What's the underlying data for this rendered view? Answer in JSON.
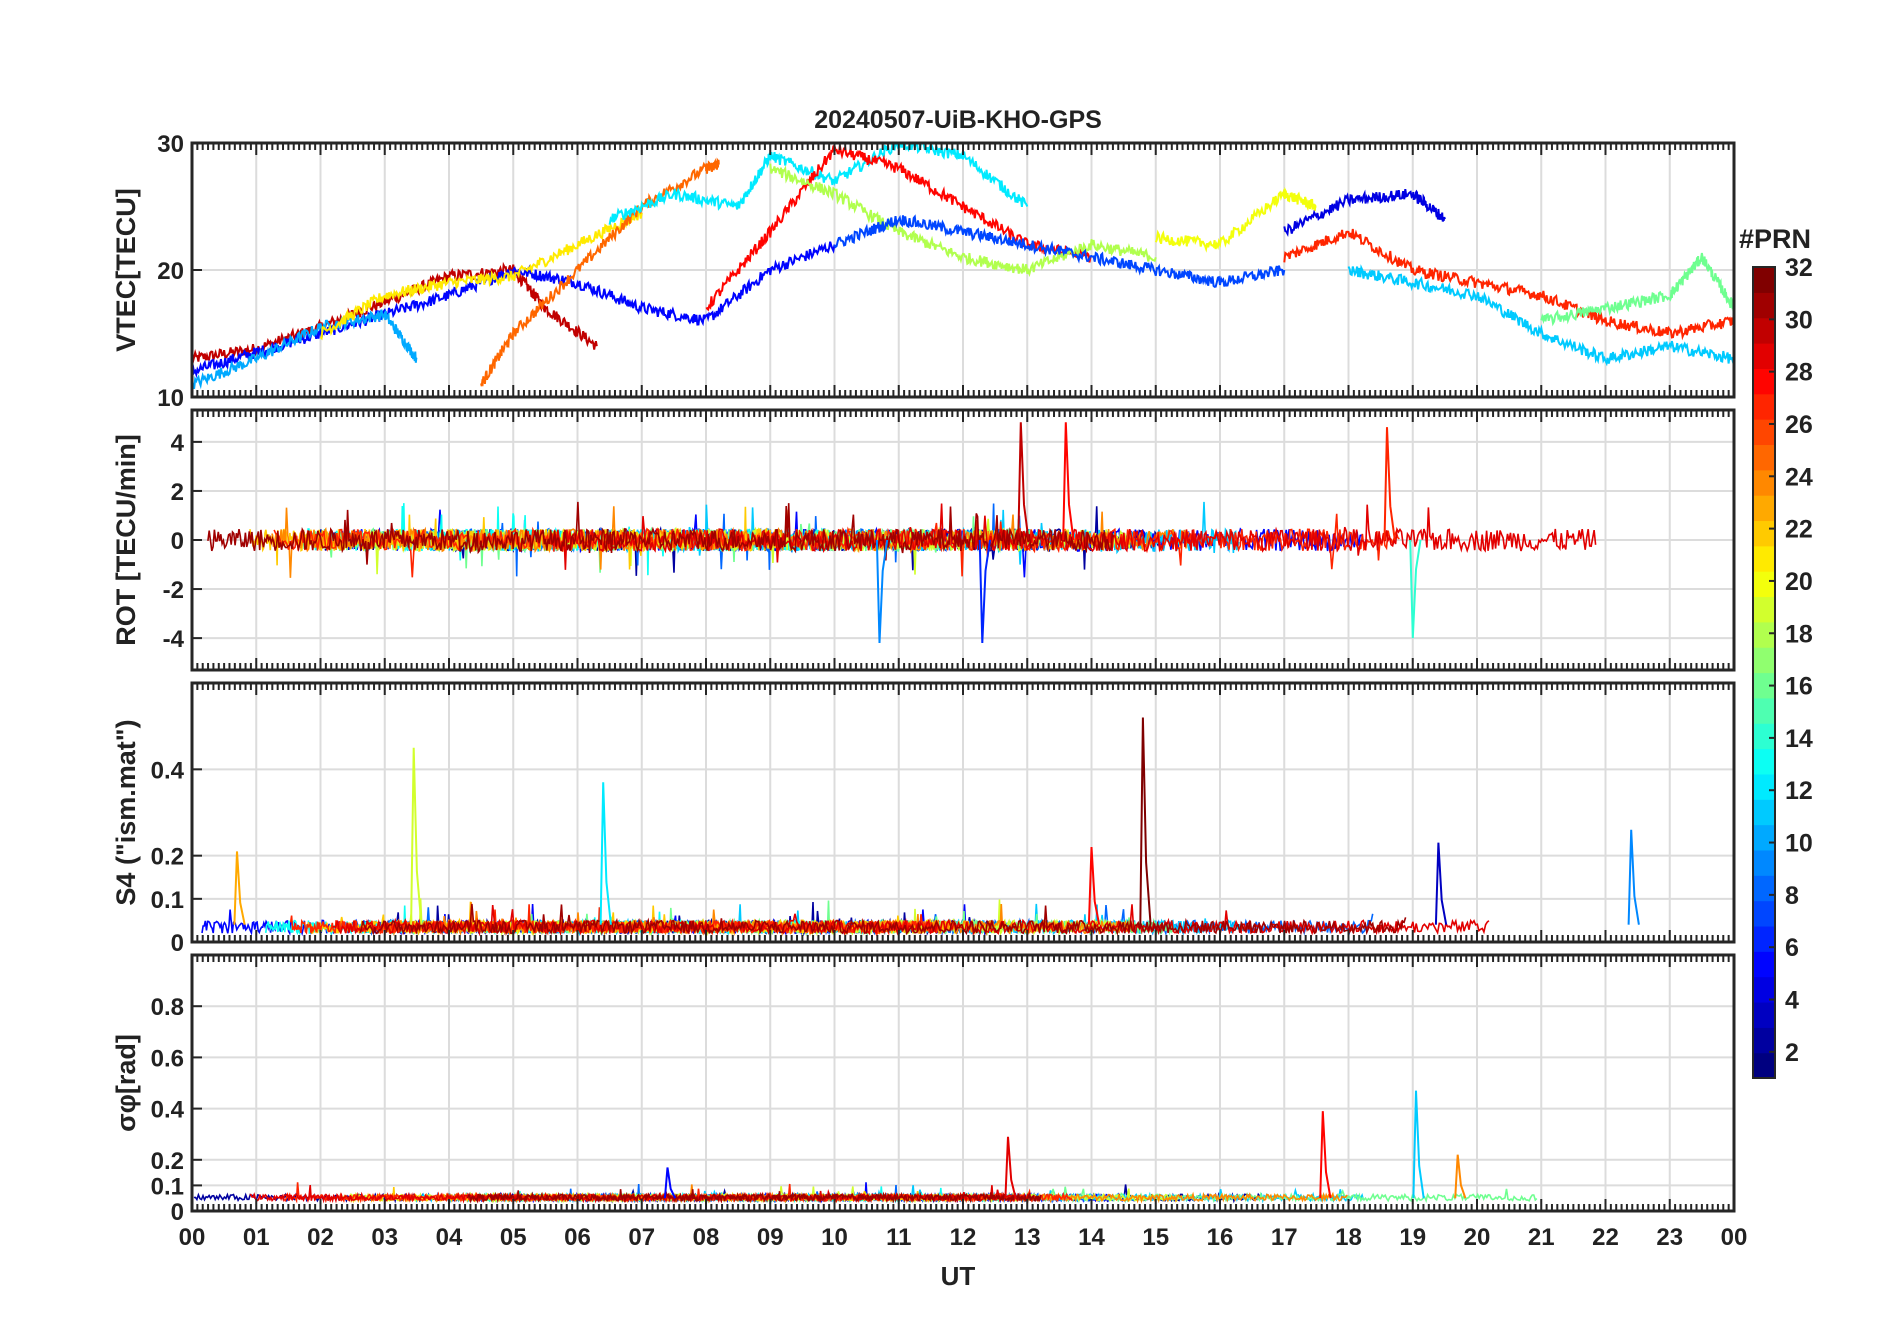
{
  "title": "20240507-UiB-KHO-GPS",
  "xlabel": "UT",
  "x_ticks": [
    "00",
    "01",
    "02",
    "03",
    "04",
    "05",
    "06",
    "07",
    "08",
    "09",
    "10",
    "11",
    "12",
    "13",
    "14",
    "15",
    "16",
    "17",
    "18",
    "19",
    "20",
    "21",
    "22",
    "23",
    "00"
  ],
  "colorbar": {
    "title": "#PRN",
    "range": [
      1,
      32
    ],
    "tick_labels": [
      "2",
      "4",
      "6",
      "8",
      "10",
      "12",
      "14",
      "16",
      "18",
      "20",
      "22",
      "24",
      "26",
      "28",
      "30",
      "32"
    ]
  },
  "chart_data": [
    {
      "type": "line",
      "id": "vtec",
      "ylabel": "VTEC[TECU]",
      "xlim": [
        0,
        24
      ],
      "ylim": [
        10,
        30
      ],
      "yticks": [
        "10",
        "20",
        "30"
      ],
      "grid": true,
      "description_series": "per-satellite VTEC curves, colored by PRN 1-32",
      "series": [
        {
          "prn": 30,
          "name": "PRN30",
          "x": [
            0.0,
            1.0,
            2.0,
            3.0,
            4.0,
            5.0,
            5.5,
            6.3
          ],
          "y": [
            13.0,
            13.8,
            15.5,
            17.5,
            19.5,
            20.0,
            17.0,
            14.0
          ]
        },
        {
          "prn": 5,
          "name": "PRN05",
          "x": [
            0.0,
            1.0,
            2.0,
            3.0,
            4.0,
            5.0,
            6.0,
            7.0,
            8.0,
            9.0,
            10.0
          ],
          "y": [
            12.0,
            13.5,
            15.0,
            16.5,
            18.0,
            20.0,
            19.0,
            17.0,
            16.0,
            20.0,
            22.0
          ]
        },
        {
          "prn": 10,
          "name": "PRN10",
          "x": [
            0.0,
            1.0,
            2.0,
            3.0,
            3.5
          ],
          "y": [
            11.0,
            13.0,
            15.5,
            16.5,
            13.0
          ]
        },
        {
          "prn": 21,
          "name": "PRN21",
          "x": [
            2.0,
            3.0,
            4.0,
            5.0,
            6.0,
            7.0
          ],
          "y": [
            15.0,
            18.0,
            19.0,
            19.5,
            22.0,
            24.5
          ]
        },
        {
          "prn": 25,
          "name": "PRN25",
          "x": [
            4.5,
            5.0,
            6.0,
            7.0,
            8.0,
            8.2
          ],
          "y": [
            11.0,
            15.0,
            20.0,
            25.0,
            28.0,
            28.3
          ]
        },
        {
          "prn": 12,
          "name": "PRN12",
          "x": [
            6.5,
            7.5,
            8.5,
            9.0,
            10.0,
            11.0,
            12.0,
            13.0
          ],
          "y": [
            24.0,
            26.0,
            25.0,
            29.0,
            27.0,
            30.0,
            29.0,
            25.0
          ]
        },
        {
          "prn": 28,
          "name": "PRN28",
          "x": [
            8.0,
            9.0,
            10.0,
            11.0,
            12.0,
            13.0,
            14.0
          ],
          "y": [
            17.0,
            23.0,
            29.5,
            28.0,
            25.0,
            22.0,
            21.0
          ]
        },
        {
          "prn": 18,
          "name": "PRN18",
          "x": [
            9.0,
            10.0,
            11.0,
            12.0,
            13.0,
            14.0,
            15.0
          ],
          "y": [
            28.0,
            26.0,
            23.0,
            21.0,
            20.0,
            22.0,
            21.0
          ]
        },
        {
          "prn": 7,
          "name": "PRN07",
          "x": [
            10.0,
            11.0,
            12.0,
            13.0,
            14.0,
            15.0,
            16.0,
            17.0
          ],
          "y": [
            22.0,
            24.0,
            23.0,
            22.0,
            21.0,
            20.0,
            19.0,
            20.0
          ]
        },
        {
          "prn": 20,
          "name": "PRN20",
          "x": [
            15.0,
            16.0,
            17.0,
            17.5
          ],
          "y": [
            22.5,
            22.0,
            26.0,
            25.0
          ]
        },
        {
          "prn": 4,
          "name": "PRN04",
          "x": [
            17.0,
            18.0,
            19.0,
            19.5
          ],
          "y": [
            23.0,
            25.5,
            26.0,
            24.0
          ]
        },
        {
          "prn": 27,
          "name": "PRN27",
          "x": [
            17.0,
            18.0,
            19.0,
            20.0,
            21.0,
            22.0,
            23.0,
            24.0
          ],
          "y": [
            21.0,
            23.0,
            20.0,
            19.0,
            18.0,
            16.0,
            15.0,
            16.0
          ]
        },
        {
          "prn": 11,
          "name": "PRN11",
          "x": [
            18.0,
            19.0,
            20.0,
            21.0,
            22.0,
            23.0,
            24.0
          ],
          "y": [
            20.0,
            19.0,
            18.0,
            15.0,
            13.0,
            14.0,
            13.0
          ]
        },
        {
          "prn": 16,
          "name": "PRN16",
          "x": [
            21.0,
            22.0,
            23.0,
            23.5,
            24.0
          ],
          "y": [
            16.0,
            17.0,
            18.0,
            21.0,
            17.0
          ]
        }
      ]
    },
    {
      "type": "line",
      "id": "rot",
      "ylabel": "ROT [TECU/min]",
      "xlim": [
        0,
        24
      ],
      "ylim": [
        -5.3,
        5.3
      ],
      "yticks": [
        "-4",
        "-2",
        "0",
        "2",
        "4"
      ],
      "grid": true,
      "description_series": "per-satellite rate of TEC, noise around 0 with spikes",
      "peaks": [
        {
          "x": 12.9,
          "y": 4.8
        },
        {
          "x": 13.6,
          "y": 4.8
        },
        {
          "x": 18.6,
          "y": 4.6
        },
        {
          "x": 10.7,
          "y": -4.2
        },
        {
          "x": 12.3,
          "y": -4.2
        },
        {
          "x": 19.0,
          "y": -4.0
        }
      ]
    },
    {
      "type": "line",
      "id": "s4",
      "ylabel": "S4 (\"ism.mat\")",
      "xlim": [
        0,
        24
      ],
      "ylim": [
        0,
        0.6
      ],
      "yticks": [
        "0",
        "0.1",
        "0.2",
        "0.4"
      ],
      "grid": true,
      "description_series": "amplitude scintillation index per satellite",
      "peaks": [
        {
          "x": 3.45,
          "y": 0.45,
          "prn": 19
        },
        {
          "x": 6.4,
          "y": 0.37,
          "prn": 12
        },
        {
          "x": 14.8,
          "y": 0.52,
          "prn": 32
        },
        {
          "x": 19.4,
          "y": 0.23,
          "prn": 3
        },
        {
          "x": 22.4,
          "y": 0.26,
          "prn": 9
        },
        {
          "x": 0.7,
          "y": 0.21,
          "prn": 23
        },
        {
          "x": 14.0,
          "y": 0.22,
          "prn": 28
        }
      ]
    },
    {
      "type": "line",
      "id": "sigma_phi",
      "ylabel": "σφ[rad]",
      "xlim": [
        0,
        24
      ],
      "ylim": [
        0,
        1.0
      ],
      "yticks": [
        "0",
        "0.1",
        "0.2",
        "0.4",
        "0.6",
        "0.8"
      ],
      "grid": true,
      "description_series": "phase scintillation index per satellite",
      "peaks": [
        {
          "x": 12.7,
          "y": 0.29,
          "prn": 29
        },
        {
          "x": 17.6,
          "y": 0.39,
          "prn": 28
        },
        {
          "x": 19.05,
          "y": 0.47,
          "prn": 11
        },
        {
          "x": 19.7,
          "y": 0.22,
          "prn": 24
        },
        {
          "x": 7.4,
          "y": 0.17,
          "prn": 5
        }
      ]
    }
  ]
}
